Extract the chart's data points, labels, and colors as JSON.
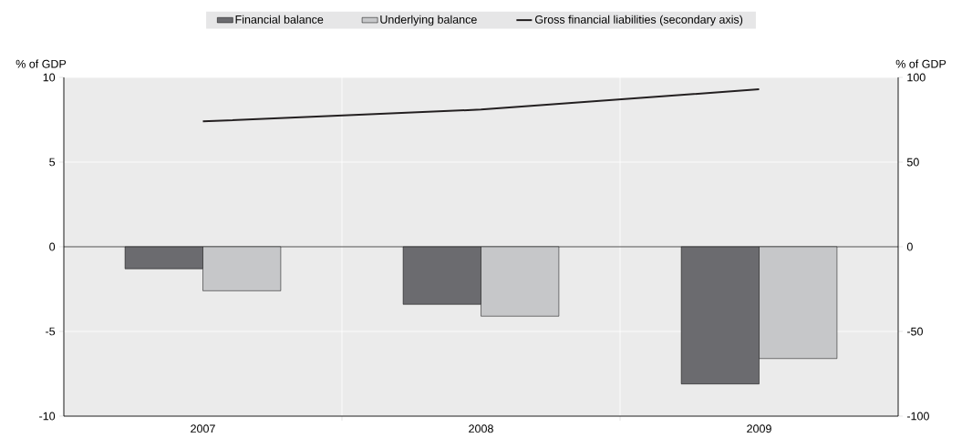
{
  "chart_data": {
    "type": "bar",
    "categories": [
      "2007",
      "2008",
      "2009"
    ],
    "ylabel": "% of GDP",
    "y2label": "% of GDP",
    "ylim": [
      -10,
      10
    ],
    "yticks": [
      -10,
      -5,
      0,
      5,
      10
    ],
    "y2lim": [
      -100,
      100
    ],
    "y2ticks": [
      -100,
      -50,
      0,
      50,
      100
    ],
    "grid": true,
    "legend": "top",
    "marker": "none",
    "series": [
      {
        "name": "Financial balance",
        "color": "#6b6b6f",
        "values": [
          -1.3,
          -3.4,
          -8.1
        ]
      },
      {
        "name": "Underlying balance",
        "color": "#c6c7c9",
        "values": [
          -2.6,
          -4.1,
          -6.6
        ]
      },
      {
        "name": "Gross financial liabilities (secondary axis)",
        "type": "line",
        "axis": "y2",
        "color": "#231f20",
        "values": [
          74,
          81,
          93
        ]
      }
    ]
  }
}
